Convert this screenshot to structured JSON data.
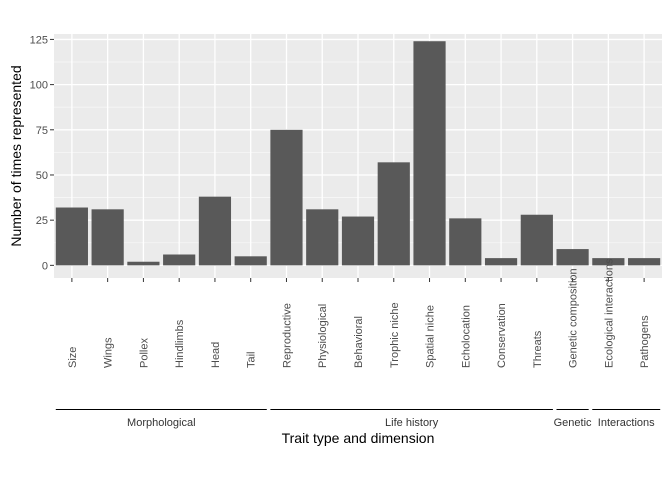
{
  "chart_data": {
    "type": "bar",
    "xlabel": "Trait type and dimension",
    "ylabel": "Number of times represented",
    "ylim": [
      -7,
      128
    ],
    "yticks": [
      0,
      25,
      50,
      75,
      100,
      125
    ],
    "grid": true,
    "colors": {
      "bar": "#595959",
      "panel": "#ebebeb",
      "grid_major": "#ffffff"
    },
    "categories": [
      "Size",
      "Wings",
      "Pollex",
      "Hindlimbs",
      "Head",
      "Tail",
      "Reproductive",
      "Physiological",
      "Behavioral",
      "Trophic niche",
      "Spatial niche",
      "Echolocation",
      "Conservation",
      "Threats",
      "Genetic composition",
      "Ecological interactions",
      "Pathogens"
    ],
    "values": [
      32,
      31,
      2,
      6,
      38,
      5,
      75,
      31,
      27,
      57,
      124,
      26,
      4,
      28,
      9,
      4,
      4
    ],
    "groups": [
      {
        "label": "Morphological",
        "start": 0,
        "end": 5
      },
      {
        "label": "Life history",
        "start": 6,
        "end": 13
      },
      {
        "label": "Genetic",
        "start": 14,
        "end": 14
      },
      {
        "label": "Interactions",
        "start": 15,
        "end": 16
      }
    ]
  }
}
